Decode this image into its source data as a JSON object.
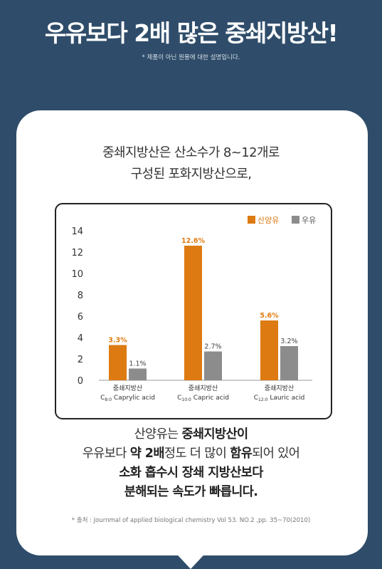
{
  "header": {
    "title": "우유보다 2배 많은 중쇄지방산!",
    "note": "* 제품이 아닌 원물에 대한 설명입니다."
  },
  "intro": {
    "line1": "중쇄지방산은 산소수가 8~12개로",
    "line2": "구성된 포화지방산으로,"
  },
  "chart_data": {
    "type": "bar",
    "categories": [
      {
        "line1": "중쇄지방산",
        "sub": "C",
        "subscript": "8:0",
        "line2": " Caprylic acid"
      },
      {
        "line1": "중쇄지방산",
        "sub": "C",
        "subscript": "10:0",
        "line2": " Capric acid"
      },
      {
        "line1": "중쇄지방산",
        "sub": "C",
        "subscript": "12:0",
        "line2": " Lauric acid"
      }
    ],
    "series": [
      {
        "name": "산양유",
        "color": "#dd7a12",
        "values": [
          3.3,
          12.6,
          5.6
        ],
        "labels": [
          "3.3%",
          "12.6%",
          "5.6%"
        ],
        "label_color": "#e07b10"
      },
      {
        "name": "우유",
        "color": "#8c8c8c",
        "values": [
          1.1,
          2.7,
          3.2
        ],
        "labels": [
          "1.1%",
          "2.7%",
          "3.2%"
        ],
        "label_color": "#444444"
      }
    ],
    "yticks": [
      "0",
      "2",
      "4",
      "6",
      "8",
      "10",
      "12",
      "14"
    ],
    "ylim": [
      0,
      14
    ],
    "grid": false,
    "legend": "top-right"
  },
  "summary": {
    "line1_plain": "산양유는 ",
    "line1_bold": "중쇄지방산이",
    "line2_a": "우유보다 ",
    "line2_b": "약 2배",
    "line2_c": "정도 더 많이 ",
    "line2_d": "함유",
    "line2_e": "되어 있어",
    "line3": "소화 흡수시  장쇄 지방산보다",
    "line4": "분해되는 속도가 빠릅니다."
  },
  "source": "* 출처 : Journmal of applied biological chemistry Vol 53. NO.2 ,pp. 35~70(2010)"
}
